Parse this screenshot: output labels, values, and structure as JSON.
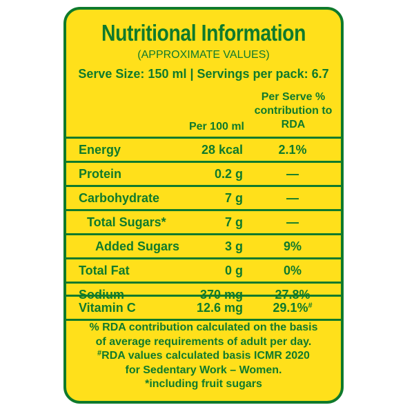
{
  "title": "Nutritional Information",
  "subtitle": "(APPROXIMATE VALUES)",
  "serve_line": "Serve Size: 150 ml | Servings per pack: 6.7",
  "columns": {
    "per_100": "Per 100 ml",
    "rda_line1": "Per Serve %",
    "rda_line2": "contribution to",
    "rda_line3": "RDA"
  },
  "rows": [
    {
      "name": "Energy",
      "per_100": "28 kcal",
      "rda": "2.1%"
    },
    {
      "name": "Protein",
      "per_100": "0.2 g",
      "rda": "—"
    },
    {
      "name": "Carbohydrate",
      "per_100": "7 g",
      "rda": "—"
    },
    {
      "name": "Total Sugars*",
      "per_100": "7 g",
      "rda": "—"
    },
    {
      "name": "Added Sugars",
      "per_100": "3 g",
      "rda": "9%"
    },
    {
      "name": "Total Fat",
      "per_100": "0 g",
      "rda": "0%"
    },
    {
      "name": "Sodium",
      "per_100": "370 mg",
      "rda": "27.8%"
    },
    {
      "name": "Vitamin C",
      "per_100": "12.6 mg",
      "rda": "29.1%",
      "rda_mark": "#"
    }
  ],
  "footnotes": {
    "line1": "% RDA contribution calculated on the basis",
    "line2": "of average requirements of adult per day.",
    "line3_mark": "#",
    "line3": "RDA values calculated basis ICMR 2020",
    "line4": "for Sedentary Work – Women.",
    "line5": "*including fruit sugars"
  },
  "colors": {
    "background": "#ffe01b",
    "text": "#0f7a2c"
  }
}
